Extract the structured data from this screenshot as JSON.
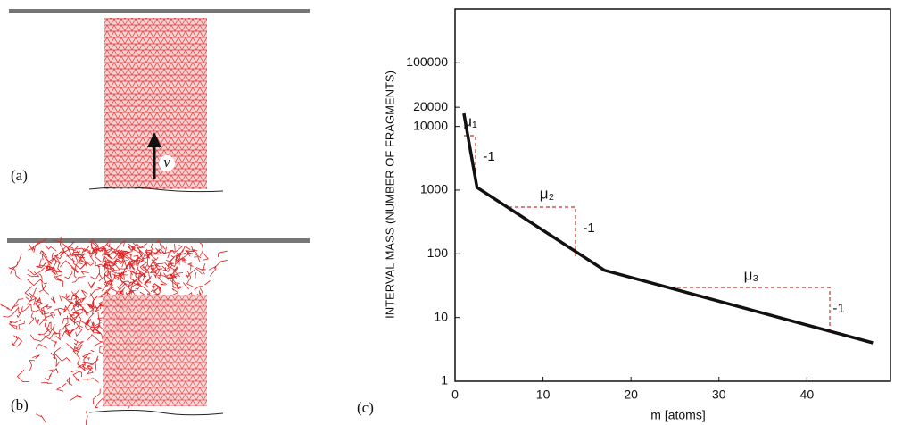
{
  "panel_labels": [
    "(a)",
    "(b)"
  ],
  "velocity_label": "ν",
  "chart_data": {
    "type": "line",
    "panel_label": "(c)",
    "x_label": "m [atoms]",
    "y_label": "INTERVAL MASS (NUMBER OF FRAGMENTS)",
    "x": [
      1,
      2.5,
      17,
      47.5
    ],
    "values": [
      16000,
      1100,
      55,
      4
    ],
    "color": "#111111",
    "xlim": [
      0,
      49.5
    ],
    "xticks": [
      0,
      10,
      20,
      30,
      40
    ],
    "ylim": [
      1,
      700000
    ],
    "yticks": [
      1,
      10,
      100,
      1000,
      10000,
      20000,
      100000
    ],
    "log_y": true,
    "annotations": [
      "μ₁",
      "-1",
      "μ₂",
      "-1",
      "μ₃",
      "-1"
    ]
  }
}
